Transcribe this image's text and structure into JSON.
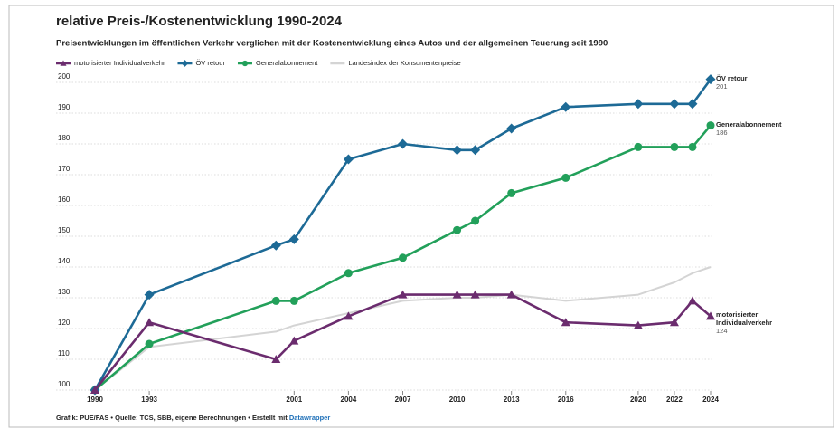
{
  "chart_data": {
    "type": "line",
    "title": "relative Preis-/Kostenentwicklung 1990-2024",
    "subtitle": "Preisentwicklungen im öffentlichen Verkehr verglichen mit der Kostenentwicklung eines Autos und der allgemeinen Teuerung seit 1990",
    "x": [
      1990,
      1993,
      2000,
      2001,
      2004,
      2007,
      2010,
      2011,
      2013,
      2016,
      2020,
      2022,
      2023,
      2024
    ],
    "series": [
      {
        "name": "motorisierter Individualverkehr",
        "color": "#6b2c6e",
        "marker": "triangle",
        "end_label": true,
        "values": [
          100,
          122,
          110,
          116,
          124,
          131,
          131,
          131,
          131,
          122,
          121,
          122,
          129,
          124
        ]
      },
      {
        "name": "ÖV retour",
        "color": "#1d6a96",
        "marker": "diamond",
        "end_label": true,
        "values": [
          100,
          131,
          147,
          149,
          175,
          180,
          178,
          178,
          185,
          192,
          193,
          193,
          193,
          201
        ]
      },
      {
        "name": "Generalabonnement",
        "color": "#22a05a",
        "marker": "circle",
        "end_label": true,
        "values": [
          100,
          115,
          129,
          129,
          138,
          143,
          152,
          155,
          164,
          169,
          179,
          179,
          179,
          186
        ]
      },
      {
        "name": "Landesindex der Konsumentenpreise",
        "color": "#d4d4d4",
        "marker": "none",
        "end_label": false,
        "values": [
          100,
          114,
          119,
          121,
          125,
          129,
          130,
          130,
          131,
          129,
          131,
          135,
          138,
          140
        ]
      }
    ],
    "xlim": [
      1990,
      2024
    ],
    "xticks": [
      1990,
      1993,
      2001,
      2004,
      2007,
      2010,
      2013,
      2016,
      2020,
      2022,
      2024
    ],
    "ylim": [
      100,
      200
    ],
    "yticks": [
      100,
      110,
      120,
      130,
      140,
      150,
      160,
      170,
      180,
      190,
      200
    ],
    "grid": true,
    "source": "Grafik: PUE/FAS • Quelle: TCS, SBB, eigene Berechnungen • Erstellt mit",
    "source_link": "Datawrapper"
  }
}
